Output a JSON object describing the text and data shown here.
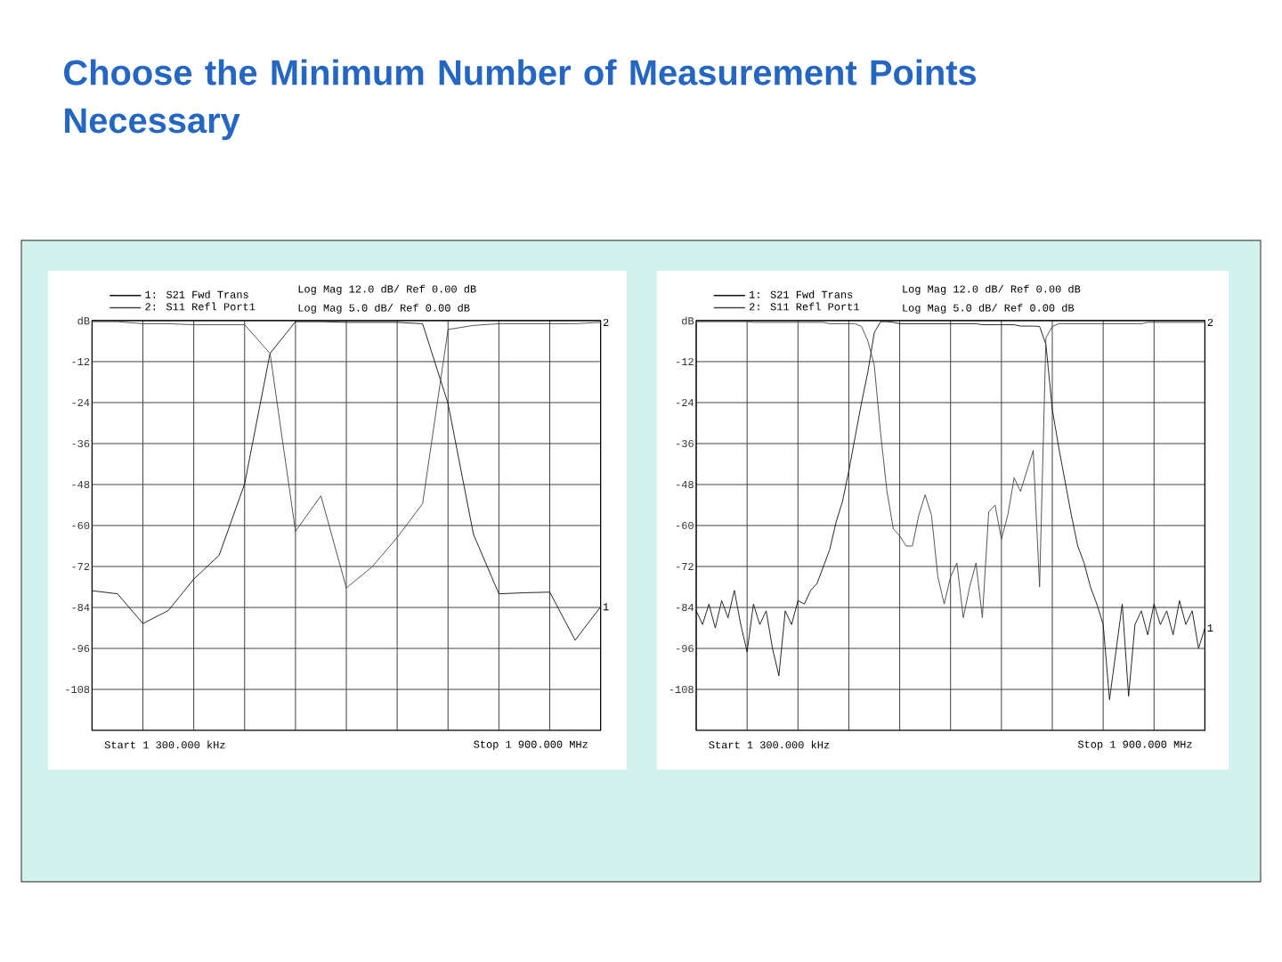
{
  "chart_data": [
    {
      "type": "line",
      "title": "Choose the Minimum Number of Measurement Points Necessary",
      "categories": [
        null,
        null,
        null,
        null,
        null,
        null,
        null,
        null,
        null,
        null,
        null,
        null,
        null,
        null,
        null,
        null,
        null,
        null,
        null,
        null,
        null
      ],
      "series": [
        {
          "name": "1: S21 Fwd Trans",
          "color": "#111111",
          "values": [
            -79.1,
            -80,
            -88.7,
            -84.9,
            -75.7,
            -68.7,
            -47.8,
            -9.6,
            -0.3,
            -0.3,
            -0.5,
            -0.5,
            -0.5,
            -0.9,
            -24.3,
            -62.6,
            -80,
            -79.7,
            -79.5,
            -93.6,
            -83.8
          ]
        },
        {
          "name": "2: S11 Refl Port1",
          "color": "#444444",
          "values": [
            -0.3,
            -0.3,
            -0.9,
            -0.9,
            -1.2,
            -1.2,
            -1.2,
            -9.6,
            -61.7,
            -51.3,
            -78.3,
            -72.2,
            -63.5,
            -53.6,
            -2.6,
            -1.4,
            -0.9,
            -0.9,
            -0.9,
            -0.9,
            -0.5
          ]
        }
      ],
      "ylim": [
        -120,
        0
      ],
      "yticks": [
        {
          "value": 0,
          "label": "dB"
        },
        -12,
        -24,
        -36,
        -48,
        -60,
        -72,
        -84,
        -96,
        -108
      ],
      "grid": true,
      "legend": "top left",
      "tick_labels": "y",
      "annotations": [
        "Log Mag 12.0 dB/ Ref 0.00 dB",
        "Log Mag 5.0 dB/ Ref 0.00 dB",
        "Start 1 300.000 kHz",
        "Stop 1 900.000 MHz",
        "1",
        "2"
      ]
    },
    {
      "type": "line",
      "categories": [
        null,
        null,
        null,
        null,
        null,
        null,
        null,
        null,
        null,
        null,
        null,
        null,
        null,
        null,
        null,
        null,
        null,
        null,
        null,
        null,
        null,
        null,
        null,
        null,
        null,
        null,
        null,
        null,
        null,
        null,
        null,
        null,
        null,
        null,
        null,
        null,
        null,
        null,
        null,
        null,
        null,
        null,
        null,
        null,
        null,
        null,
        null,
        null,
        null,
        null,
        null,
        null,
        null,
        null,
        null,
        null,
        null,
        null,
        null,
        null,
        null,
        null,
        null,
        null,
        null,
        null,
        null,
        null,
        null,
        null,
        null,
        null,
        null,
        null,
        null,
        null,
        null,
        null,
        null,
        null,
        null
      ],
      "series": [
        {
          "name": "1: S21 Fwd Trans",
          "color": "#111111",
          "values": [
            -85,
            -89,
            -83,
            -90,
            -82,
            -87,
            -79,
            -89,
            -97,
            -83,
            -89,
            -85,
            -96,
            -104,
            -85,
            -89,
            -82,
            -83,
            -79,
            -77,
            -72,
            -67,
            -59,
            -53,
            -44,
            -34,
            -24,
            -15,
            -3.5,
            -0.3,
            -0.3,
            -0.5,
            -0.9,
            -0.9,
            -0.9,
            -0.9,
            -0.9,
            -0.9,
            -0.9,
            -0.9,
            -0.9,
            -0.9,
            -0.9,
            -0.9,
            -0.9,
            -1.2,
            -1.2,
            -1.2,
            -1.2,
            -1.2,
            -1.2,
            -1.6,
            -1.6,
            -1.6,
            -1.7,
            -7,
            -26,
            -37,
            -47,
            -57,
            -66,
            -71,
            -78,
            -83,
            -89,
            -111,
            -97,
            -83,
            -110,
            -89,
            -85,
            -92,
            -83,
            -89,
            -85,
            -92,
            -82,
            -89,
            -85,
            -96,
            -90
          ]
        },
        {
          "name": "2: S11 Refl Port1",
          "color": "#444444",
          "values": [
            -0.3,
            -0.3,
            -0.3,
            -0.3,
            -0.3,
            -0.3,
            -0.3,
            -0.3,
            -0.3,
            -0.5,
            -0.5,
            -0.5,
            -0.5,
            -0.5,
            -0.5,
            -0.5,
            -0.5,
            -0.5,
            -0.5,
            -0.5,
            -0.5,
            -0.9,
            -0.9,
            -0.9,
            -0.9,
            -0.9,
            -1.7,
            -6,
            -13,
            -33,
            -50,
            -61,
            -63,
            -66,
            -66,
            -57,
            -51,
            -57,
            -75,
            -83,
            -75,
            -71,
            -87,
            -78,
            -71,
            -87,
            -56,
            -54,
            -64,
            -57,
            -46,
            -50,
            -44,
            -38,
            -78,
            -5,
            -1.7,
            -0.9,
            -0.9,
            -0.9,
            -0.9,
            -0.9,
            -0.9,
            -0.9,
            -0.9,
            -0.9,
            -0.9,
            -0.9,
            -0.9,
            -0.9,
            -0.9,
            -0.5,
            -0.5,
            -0.5,
            -0.5,
            -0.5,
            -0.5,
            -0.5,
            -0.5,
            -0.5,
            -0.5
          ]
        }
      ],
      "ylim": [
        -120,
        0
      ],
      "yticks": [
        {
          "value": 0,
          "label": "dB"
        },
        -12,
        -24,
        -36,
        -48,
        -60,
        -72,
        -84,
        -96,
        -108
      ],
      "grid": true,
      "legend": "top left",
      "tick_labels": "y",
      "annotations": [
        "Log Mag 12.0 dB/ Ref 0.00 dB",
        "Log Mag 5.0 dB/ Ref 0.00 dB",
        "Start 1 300.000 kHz",
        "Stop 1 900.000 MHz",
        "1",
        "2"
      ]
    }
  ]
}
